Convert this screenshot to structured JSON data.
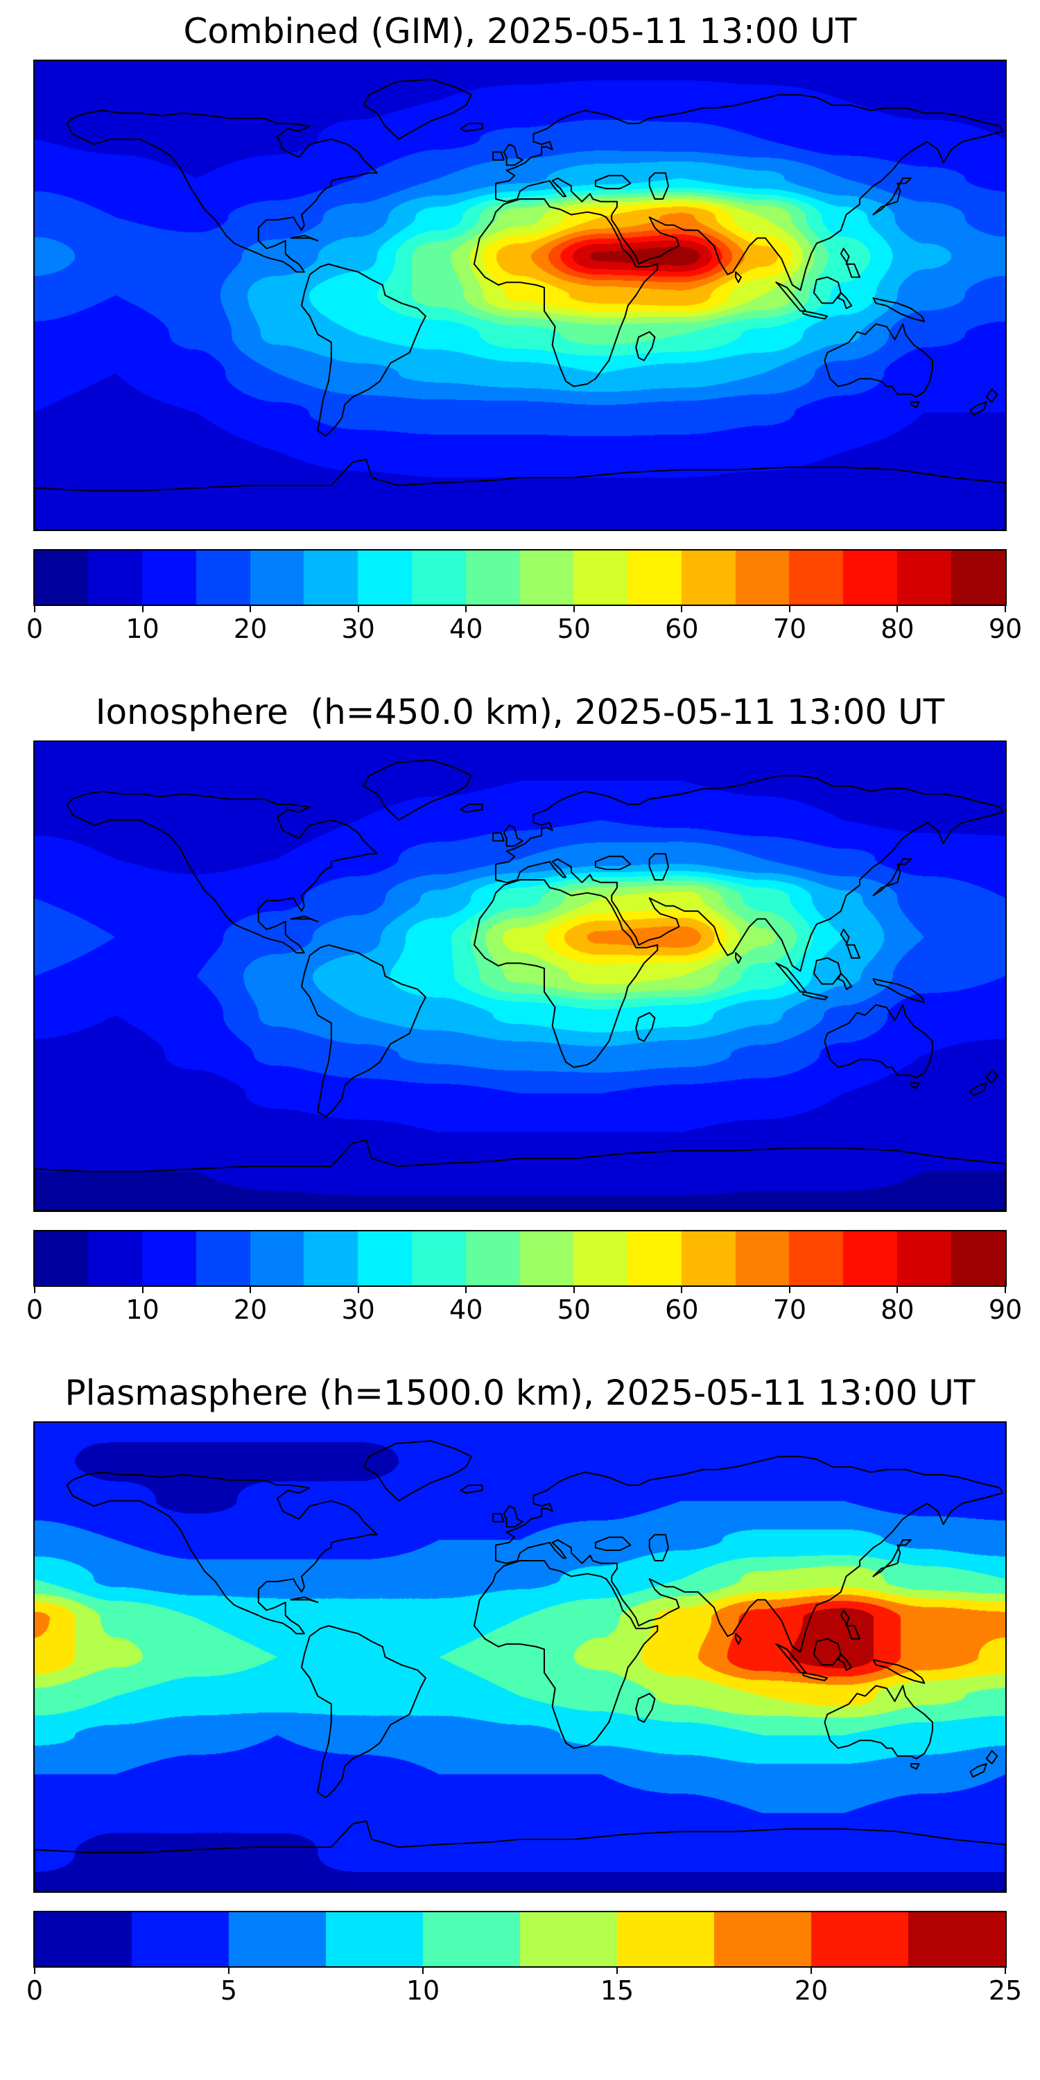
{
  "figure": {
    "background_color": "#ffffff",
    "text_color": "#000000",
    "date_time": "2025-05-11 13:00 UT"
  },
  "chart_data": [
    {
      "type": "heatmap",
      "title": "Combined (GIM), 2025-05-11 13:00 UT",
      "xlabel": "",
      "ylabel": "",
      "projection": "equirectangular world map with coastlines",
      "colormap": "jet",
      "legend_position": "horizontal colorbar below",
      "grid": false,
      "levels": {
        "min": 0,
        "max": 90,
        "step": 5
      },
      "colorbar_ticks": [
        0,
        10,
        20,
        30,
        40,
        50,
        60,
        70,
        80,
        90
      ],
      "lon_deg": [
        -180,
        -150,
        -120,
        -90,
        -60,
        -30,
        0,
        30,
        60,
        90,
        120,
        150,
        180
      ],
      "lat_deg": [
        90,
        75,
        60,
        45,
        30,
        15,
        0,
        -15,
        -30,
        -45,
        -60,
        -75,
        -90
      ],
      "values_grid": [
        [
          8,
          8,
          8,
          8,
          8,
          8,
          8,
          8,
          8,
          8,
          8,
          8,
          8
        ],
        [
          9,
          8,
          8,
          8,
          9,
          10,
          11,
          12,
          12,
          11,
          10,
          9,
          9
        ],
        [
          10,
          9,
          8,
          9,
          11,
          14,
          16,
          18,
          17,
          15,
          12,
          11,
          10
        ],
        [
          14,
          12,
          10,
          12,
          15,
          20,
          24,
          28,
          30,
          26,
          20,
          16,
          14
        ],
        [
          18,
          15,
          14,
          17,
          22,
          32,
          48,
          60,
          66,
          50,
          32,
          22,
          18
        ],
        [
          22,
          18,
          17,
          22,
          28,
          44,
          64,
          86,
          88,
          62,
          38,
          26,
          22
        ],
        [
          18,
          15,
          18,
          28,
          34,
          42,
          56,
          62,
          64,
          50,
          34,
          22,
          18
        ],
        [
          14,
          12,
          16,
          26,
          30,
          32,
          38,
          42,
          40,
          34,
          26,
          16,
          14
        ],
        [
          11,
          10,
          13,
          20,
          24,
          26,
          28,
          30,
          28,
          25,
          18,
          12,
          11
        ],
        [
          10,
          9,
          10,
          14,
          17,
          18,
          18,
          19,
          18,
          16,
          13,
          10,
          10
        ],
        [
          9,
          8,
          8,
          10,
          12,
          13,
          13,
          13,
          13,
          12,
          10,
          9,
          9
        ],
        [
          6,
          6,
          6,
          7,
          8,
          9,
          9,
          9,
          9,
          8,
          7,
          6,
          6
        ],
        [
          5,
          5,
          5,
          5,
          5,
          5,
          5,
          5,
          5,
          5,
          5,
          5,
          5
        ]
      ]
    },
    {
      "type": "heatmap",
      "title": "Ionosphere  (h=450.0 km), 2025-05-11 13:00 UT",
      "xlabel": "",
      "ylabel": "",
      "projection": "equirectangular world map with coastlines",
      "colormap": "jet",
      "legend_position": "horizontal colorbar below",
      "grid": false,
      "levels": {
        "min": 0,
        "max": 90,
        "step": 5
      },
      "colorbar_ticks": [
        0,
        10,
        20,
        30,
        40,
        50,
        60,
        70,
        80,
        90
      ],
      "lon_deg": [
        -180,
        -150,
        -120,
        -90,
        -60,
        -30,
        0,
        30,
        60,
        90,
        120,
        150,
        180
      ],
      "lat_deg": [
        90,
        75,
        60,
        45,
        30,
        15,
        0,
        -15,
        -30,
        -45,
        -60,
        -75,
        -90
      ],
      "values_grid": [
        [
          7,
          7,
          7,
          7,
          7,
          7,
          7,
          7,
          7,
          7,
          7,
          7,
          7
        ],
        [
          8,
          7,
          7,
          7,
          8,
          9,
          10,
          10,
          10,
          9,
          8,
          8,
          8
        ],
        [
          9,
          8,
          7,
          8,
          10,
          12,
          14,
          15,
          14,
          12,
          10,
          9,
          9
        ],
        [
          12,
          10,
          9,
          10,
          13,
          17,
          20,
          23,
          24,
          20,
          16,
          13,
          12
        ],
        [
          15,
          13,
          12,
          14,
          18,
          26,
          38,
          50,
          52,
          38,
          26,
          18,
          15
        ],
        [
          18,
          15,
          14,
          18,
          23,
          34,
          52,
          66,
          68,
          46,
          30,
          20,
          18
        ],
        [
          15,
          13,
          15,
          23,
          28,
          34,
          46,
          52,
          50,
          38,
          26,
          17,
          15
        ],
        [
          12,
          10,
          13,
          21,
          25,
          27,
          31,
          34,
          32,
          26,
          19,
          12,
          12
        ],
        [
          9,
          8,
          11,
          16,
          19,
          21,
          23,
          24,
          22,
          19,
          14,
          10,
          9
        ],
        [
          8,
          7,
          8,
          11,
          13,
          14,
          15,
          15,
          14,
          13,
          10,
          8,
          8
        ],
        [
          7,
          6,
          7,
          8,
          9,
          10,
          10,
          10,
          10,
          9,
          8,
          7,
          7
        ],
        [
          5,
          5,
          5,
          6,
          7,
          7,
          7,
          7,
          7,
          6,
          6,
          5,
          5
        ],
        [
          4,
          4,
          4,
          4,
          4,
          4,
          4,
          4,
          4,
          4,
          4,
          4,
          4
        ]
      ]
    },
    {
      "type": "heatmap",
      "title": "Plasmasphere (h=1500.0 km), 2025-05-11 13:00 UT",
      "xlabel": "",
      "ylabel": "",
      "projection": "equirectangular world map with coastlines",
      "colormap": "jet",
      "legend_position": "horizontal colorbar below",
      "grid": false,
      "levels": {
        "min": 0,
        "max": 25,
        "step": 2.5
      },
      "colorbar_ticks": [
        0,
        5,
        10,
        15,
        20,
        25
      ],
      "lon_deg": [
        -180,
        -150,
        -120,
        -90,
        -60,
        -30,
        0,
        30,
        60,
        90,
        120,
        150,
        180
      ],
      "lat_deg": [
        90,
        75,
        60,
        45,
        30,
        15,
        0,
        -15,
        -30,
        -45,
        -60,
        -75,
        -90
      ],
      "values_grid": [
        [
          3,
          3,
          3,
          3,
          3,
          3,
          3,
          3,
          3,
          3,
          3,
          3,
          3
        ],
        [
          3,
          2,
          2,
          2,
          2,
          3,
          3,
          3,
          3,
          3,
          3,
          3,
          3
        ],
        [
          4,
          3,
          2,
          3,
          3,
          4,
          4,
          4,
          5,
          5,
          5,
          4,
          4
        ],
        [
          6,
          5,
          4,
          4,
          4,
          5,
          5,
          6,
          7,
          8,
          8,
          7,
          6
        ],
        [
          10,
          7,
          6,
          6,
          6,
          6,
          7,
          8,
          10,
          13,
          14,
          11,
          10
        ],
        [
          18,
          12,
          10,
          9,
          9,
          9,
          10,
          12,
          16,
          21,
          24,
          19,
          18
        ],
        [
          17,
          13,
          11,
          10,
          10,
          10,
          11,
          13,
          17,
          22,
          24,
          19,
          17
        ],
        [
          12,
          10,
          9,
          9,
          9,
          9,
          10,
          11,
          13,
          15,
          16,
          13,
          12
        ],
        [
          8,
          7,
          6,
          5,
          6,
          6,
          7,
          8,
          9,
          10,
          10,
          9,
          8
        ],
        [
          5,
          5,
          4,
          4,
          4,
          5,
          5,
          5,
          6,
          7,
          7,
          6,
          5
        ],
        [
          4,
          3,
          3,
          3,
          3,
          4,
          4,
          4,
          4,
          5,
          5,
          4,
          4
        ],
        [
          3,
          2,
          2,
          2,
          3,
          3,
          3,
          3,
          3,
          3,
          3,
          3,
          3
        ],
        [
          2,
          2,
          2,
          2,
          2,
          2,
          2,
          2,
          2,
          2,
          2,
          2,
          2
        ]
      ]
    }
  ]
}
